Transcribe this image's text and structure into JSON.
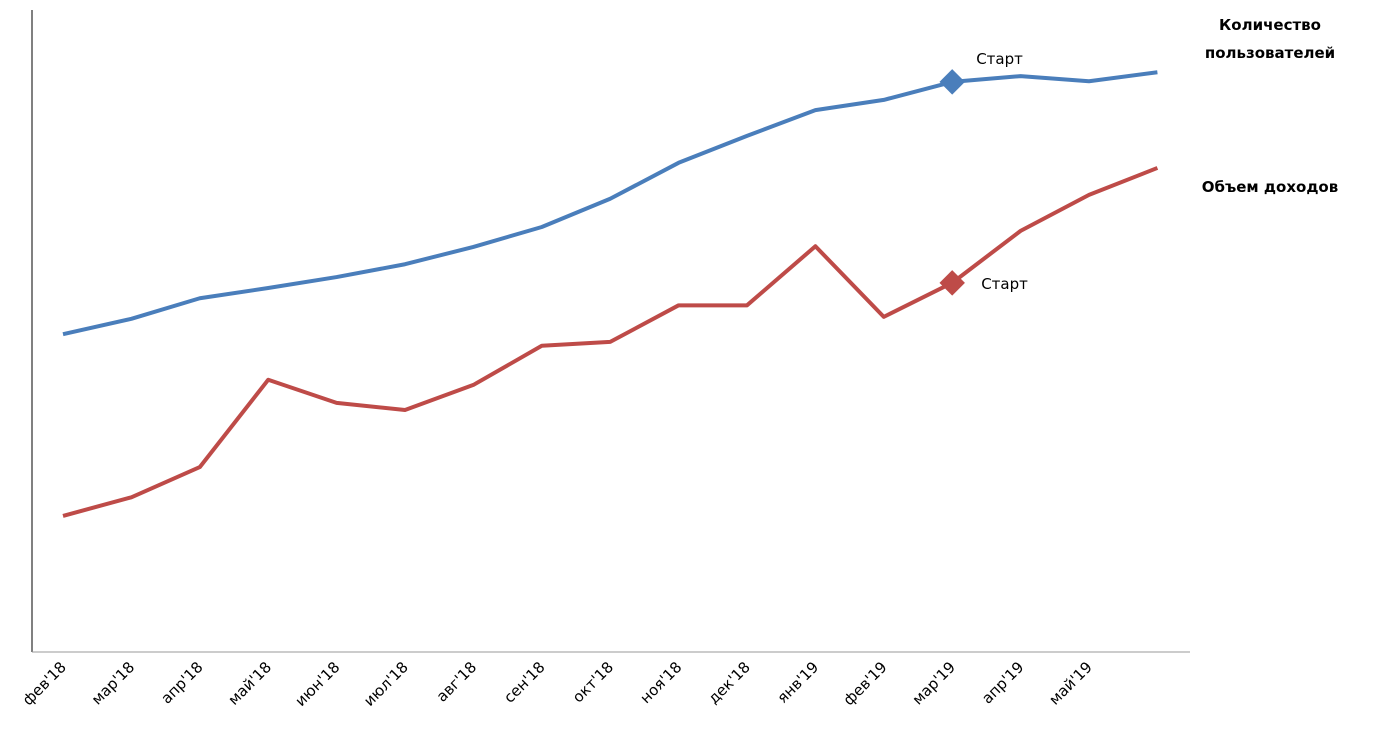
{
  "chart_data": {
    "type": "line",
    "categories": [
      "фев'18",
      "мар'18",
      "апр'18",
      "май'18",
      "июн'18",
      "июл'18",
      "авг'18",
      "сен'18",
      "окт'18",
      "ноя'18",
      "дек'18",
      "янв'19",
      "фев'19",
      "мар'19",
      "апр'19",
      "май'19",
      null
    ],
    "ylim": [
      0,
      100
    ],
    "series": [
      {
        "name": "Количество пользователей",
        "color": "#4a7ebb",
        "values": [
          49.5,
          51.9,
          55.1,
          56.7,
          58.4,
          60.4,
          63.1,
          66.2,
          70.6,
          76.2,
          80.4,
          84.4,
          86.0,
          88.8,
          89.7,
          88.9,
          90.3
        ]
      },
      {
        "name": "Объем доходов",
        "color": "#be4b48",
        "values": [
          21.2,
          24.1,
          28.8,
          42.4,
          38.8,
          37.7,
          41.6,
          47.7,
          48.3,
          54.0,
          54.0,
          63.2,
          52.2,
          57.5,
          65.6,
          71.2,
          75.4
        ]
      }
    ],
    "annotations": [
      {
        "text": "Старт",
        "series": 0,
        "index": 13
      },
      {
        "text": "Старт",
        "series": 1,
        "index": 13
      }
    ]
  }
}
